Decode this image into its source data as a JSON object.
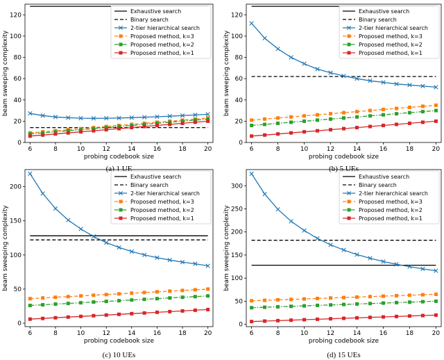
{
  "chart_data": [
    {
      "type": "line",
      "caption": "(a) 1 UE",
      "xlabel": "probing codebook size",
      "ylabel": "beam sweeping complexity",
      "xlim": [
        5.6,
        20.4
      ],
      "ylim": [
        0,
        130
      ],
      "xticks": [
        6,
        8,
        10,
        12,
        14,
        16,
        18,
        20
      ],
      "yticks": [
        0,
        20,
        40,
        60,
        80,
        100,
        120
      ],
      "x": [
        6,
        7,
        8,
        9,
        10,
        11,
        12,
        13,
        14,
        15,
        16,
        17,
        18,
        19,
        20
      ],
      "series": [
        {
          "name": "Exhaustive search",
          "color": "#000000",
          "style": "solid",
          "marker": "none",
          "values": [
            128,
            128,
            128,
            128,
            128,
            128,
            128,
            128,
            128,
            128,
            128,
            128,
            128,
            128,
            128
          ]
        },
        {
          "name": "Binary search",
          "color": "#000000",
          "style": "dashed",
          "marker": "none",
          "values": [
            14,
            14,
            14,
            14,
            14,
            14,
            14,
            14,
            14,
            14,
            14,
            14,
            14,
            14,
            14
          ]
        },
        {
          "name": "2-tier hierarchical search",
          "color": "#1f77b4",
          "style": "solid",
          "marker": "x",
          "values": [
            27.3,
            25.3,
            24,
            23.3,
            22.8,
            22.7,
            22.8,
            23,
            23.3,
            23.7,
            24.2,
            24.7,
            25.3,
            25.9,
            26.5
          ]
        },
        {
          "name": "Proposed method, k=3",
          "color": "#ff7f0e",
          "style": "dashed",
          "marker": "square",
          "values": [
            9,
            10,
            11,
            12,
            13,
            14,
            15,
            16,
            17,
            18,
            19,
            20,
            21,
            22,
            23
          ]
        },
        {
          "name": "Proposed method, k=2",
          "color": "#2ca02c",
          "style": "dashdot",
          "marker": "square",
          "values": [
            8,
            9,
            10,
            11,
            12,
            13,
            14,
            15,
            16,
            17,
            18,
            19,
            20,
            21,
            22
          ]
        },
        {
          "name": "Proposed method, k=1",
          "color": "#d62728",
          "style": "solid",
          "marker": "square",
          "values": [
            6,
            7,
            8,
            9,
            10,
            11,
            12,
            13,
            14,
            15,
            16,
            17,
            18,
            19,
            20
          ]
        }
      ]
    },
    {
      "type": "line",
      "caption": "(b) 5 UEs",
      "xlabel": "probing codebook size",
      "ylabel": "beam sweeping complexity",
      "xlim": [
        5.6,
        20.4
      ],
      "ylim": [
        0,
        130
      ],
      "xticks": [
        6,
        8,
        10,
        12,
        14,
        16,
        18,
        20
      ],
      "yticks": [
        0,
        20,
        40,
        60,
        80,
        100,
        120
      ],
      "x": [
        6,
        7,
        8,
        9,
        10,
        11,
        12,
        13,
        14,
        15,
        16,
        17,
        18,
        19,
        20
      ],
      "series": [
        {
          "name": "Exhaustive search",
          "color": "#000000",
          "style": "solid",
          "marker": "none",
          "values": [
            128,
            128,
            128,
            128,
            128,
            128,
            128,
            128,
            128,
            128,
            128,
            128,
            128,
            128,
            128
          ]
        },
        {
          "name": "Binary search",
          "color": "#000000",
          "style": "dashed",
          "marker": "none",
          "values": [
            62,
            62,
            62,
            62,
            62,
            62,
            62,
            62,
            62,
            62,
            62,
            62,
            62,
            62,
            62
          ]
        },
        {
          "name": "2-tier hierarchical search",
          "color": "#1f77b4",
          "style": "solid",
          "marker": "x",
          "values": [
            112,
            98,
            88,
            80,
            74,
            69,
            65.5,
            62.5,
            60,
            58,
            56.5,
            55,
            54,
            53,
            52
          ]
        },
        {
          "name": "Proposed method, k=3",
          "color": "#ff7f0e",
          "style": "dashed",
          "marker": "square",
          "values": [
            21,
            22,
            23,
            24,
            25,
            26,
            27,
            28,
            29,
            30,
            31,
            32,
            33,
            34,
            35
          ]
        },
        {
          "name": "Proposed method, k=2",
          "color": "#2ca02c",
          "style": "dashdot",
          "marker": "square",
          "values": [
            16,
            17,
            18,
            19,
            20,
            21,
            22,
            23,
            24,
            25,
            26,
            27,
            28,
            29,
            30
          ]
        },
        {
          "name": "Proposed method, k=1",
          "color": "#d62728",
          "style": "solid",
          "marker": "square",
          "values": [
            6,
            7,
            8,
            9,
            10,
            11,
            12,
            13,
            14,
            15,
            16,
            17,
            18,
            19,
            20
          ]
        }
      ]
    },
    {
      "type": "line",
      "caption": "(c) 10 UEs",
      "xlabel": "probing codebook size",
      "ylabel": "beam sweeping complexity",
      "xlim": [
        5.6,
        20.4
      ],
      "ylim": [
        -5,
        225
      ],
      "xticks": [
        6,
        8,
        10,
        12,
        14,
        16,
        18,
        20
      ],
      "yticks": [
        0,
        50,
        100,
        150,
        200
      ],
      "x": [
        6,
        7,
        8,
        9,
        10,
        11,
        12,
        13,
        14,
        15,
        16,
        17,
        18,
        19,
        20
      ],
      "series": [
        {
          "name": "Exhaustive search",
          "color": "#000000",
          "style": "solid",
          "marker": "none",
          "values": [
            128,
            128,
            128,
            128,
            128,
            128,
            128,
            128,
            128,
            128,
            128,
            128,
            128,
            128,
            128
          ]
        },
        {
          "name": "Binary search",
          "color": "#000000",
          "style": "dashed",
          "marker": "none",
          "values": [
            122,
            122,
            122,
            122,
            122,
            122,
            122,
            122,
            122,
            122,
            122,
            122,
            122,
            122,
            122
          ]
        },
        {
          "name": "2-tier hierarchical search",
          "color": "#1f77b4",
          "style": "solid",
          "marker": "x",
          "values": [
            219,
            190,
            168,
            151,
            138,
            127,
            118,
            111,
            105,
            100,
            96,
            92.5,
            89.5,
            87,
            84
          ]
        },
        {
          "name": "Proposed method, k=3",
          "color": "#ff7f0e",
          "style": "dashed",
          "marker": "square",
          "values": [
            36,
            37,
            38,
            39,
            40,
            41,
            42,
            43,
            44,
            45,
            46,
            47,
            48,
            49,
            50
          ]
        },
        {
          "name": "Proposed method, k=2",
          "color": "#2ca02c",
          "style": "dashdot",
          "marker": "square",
          "values": [
            26,
            27,
            28,
            29,
            30,
            31,
            32,
            33,
            34,
            35,
            36,
            37,
            38,
            39,
            40
          ]
        },
        {
          "name": "Proposed method, k=1",
          "color": "#d62728",
          "style": "solid",
          "marker": "square",
          "values": [
            6,
            7,
            8,
            9,
            10,
            11,
            12,
            13,
            14,
            15,
            16,
            17,
            18,
            19,
            20
          ]
        }
      ]
    },
    {
      "type": "line",
      "caption": "(d) 15 UEs",
      "xlabel": "probing codebook size",
      "ylabel": "beam sweeping complexity",
      "xlim": [
        5.6,
        20.4
      ],
      "ylim": [
        -5,
        335
      ],
      "xticks": [
        6,
        8,
        10,
        12,
        14,
        16,
        18,
        20
      ],
      "yticks": [
        0,
        50,
        100,
        150,
        200,
        250,
        300
      ],
      "x": [
        6,
        7,
        8,
        9,
        10,
        11,
        12,
        13,
        14,
        15,
        16,
        17,
        18,
        19,
        20
      ],
      "series": [
        {
          "name": "Exhaustive search",
          "color": "#000000",
          "style": "solid",
          "marker": "none",
          "values": [
            128,
            128,
            128,
            128,
            128,
            128,
            128,
            128,
            128,
            128,
            128,
            128,
            128,
            128,
            128
          ]
        },
        {
          "name": "Binary search",
          "color": "#000000",
          "style": "dashed",
          "marker": "none",
          "values": [
            182,
            182,
            182,
            182,
            182,
            182,
            182,
            182,
            182,
            182,
            182,
            182,
            182,
            182,
            182
          ]
        },
        {
          "name": "2-tier hierarchical search",
          "color": "#1f77b4",
          "style": "solid",
          "marker": "x",
          "values": [
            326,
            282,
            249,
            223,
            203,
            186,
            172,
            161,
            151,
            143,
            136,
            130,
            125,
            120,
            116
          ]
        },
        {
          "name": "Proposed method, k=3",
          "color": "#ff7f0e",
          "style": "dashed",
          "marker": "square",
          "values": [
            51,
            52,
            53,
            54,
            55,
            56,
            57,
            58,
            59,
            60,
            61,
            62,
            63,
            64,
            65
          ]
        },
        {
          "name": "Proposed method, k=2",
          "color": "#2ca02c",
          "style": "dashdot",
          "marker": "square",
          "values": [
            36,
            37,
            38,
            39,
            40,
            41,
            42,
            43,
            44,
            45,
            46,
            47,
            48,
            49,
            50
          ]
        },
        {
          "name": "Proposed method, k=1",
          "color": "#d62728",
          "style": "solid",
          "marker": "square",
          "values": [
            6,
            7,
            8,
            9,
            10,
            11,
            12,
            13,
            14,
            15,
            16,
            17,
            18,
            19,
            20
          ]
        }
      ]
    }
  ]
}
